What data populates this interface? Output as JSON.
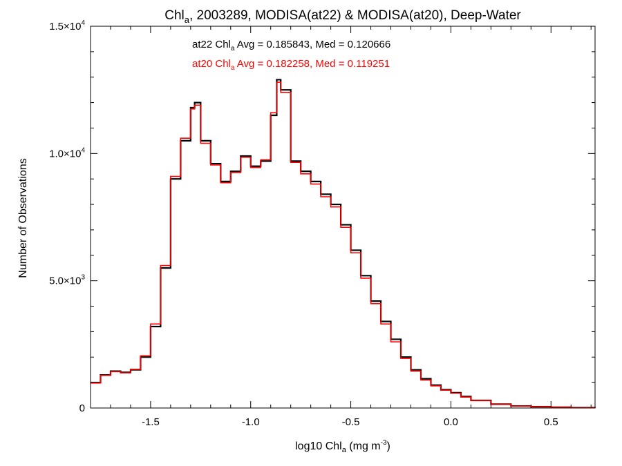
{
  "chart_data": {
    "type": "line",
    "title": {
      "base": "Chl",
      "sub": "a",
      "rest": ", 2003289, MODISA(at22) & MODISA(at20), Deep-Water"
    },
    "xlabel": {
      "base": "log10 Chl",
      "sub": "a",
      "mid": " (mg m",
      "sup": "-3",
      "end": ")"
    },
    "ylabel": "Number of Observations",
    "xlim": [
      -1.8,
      0.72
    ],
    "ylim": [
      0,
      15000
    ],
    "x_ticks": [
      {
        "value": -1.5,
        "label": "-1.5"
      },
      {
        "value": -1.0,
        "label": "-1.0"
      },
      {
        "value": -0.5,
        "label": "-0.5"
      },
      {
        "value": 0.0,
        "label": "0.0"
      },
      {
        "value": 0.5,
        "label": "0.5"
      }
    ],
    "y_ticks": [
      {
        "value": 0,
        "mant": "0",
        "exp": ""
      },
      {
        "value": 5000,
        "mant": "5.0×10",
        "exp": "3"
      },
      {
        "value": 10000,
        "mant": "1.0×10",
        "exp": "4"
      },
      {
        "value": 15000,
        "mant": "1.5×10",
        "exp": "4"
      }
    ],
    "annotations": [
      {
        "pre": "at22 Chl",
        "sub": "a",
        "post": " Avg = 0.185843, Med = 0.120666",
        "color": "#000000"
      },
      {
        "pre": "at20 Chl",
        "sub": "a",
        "post": " Avg = 0.182258, Med = 0.119251",
        "color": "#ff0000"
      }
    ],
    "series": [
      {
        "color": "#000000",
        "x": [
          -1.8,
          -1.75,
          -1.7,
          -1.65,
          -1.6,
          -1.55,
          -1.5,
          -1.45,
          -1.4,
          -1.35,
          -1.3,
          -1.28,
          -1.25,
          -1.2,
          -1.15,
          -1.1,
          -1.05,
          -1.0,
          -0.95,
          -0.9,
          -0.87,
          -0.85,
          -0.8,
          -0.75,
          -0.7,
          -0.65,
          -0.6,
          -0.55,
          -0.5,
          -0.45,
          -0.4,
          -0.35,
          -0.3,
          -0.25,
          -0.2,
          -0.15,
          -0.1,
          -0.05,
          0.0,
          0.05,
          0.1,
          0.2,
          0.3,
          0.4,
          0.5,
          0.6,
          0.72
        ],
        "y": [
          1000,
          1300,
          1450,
          1400,
          1500,
          2000,
          3200,
          5500,
          9000,
          10500,
          11800,
          12000,
          10500,
          9600,
          8900,
          9300,
          9900,
          9500,
          9700,
          11500,
          12900,
          12500,
          9700,
          9300,
          8900,
          8400,
          8000,
          7200,
          6200,
          5200,
          4200,
          3400,
          2700,
          2000,
          1500,
          1150,
          900,
          720,
          600,
          450,
          300,
          150,
          80,
          50,
          30,
          15,
          10
        ]
      },
      {
        "color": "#ff0000",
        "x": [
          -1.8,
          -1.75,
          -1.7,
          -1.65,
          -1.6,
          -1.55,
          -1.5,
          -1.45,
          -1.4,
          -1.35,
          -1.3,
          -1.28,
          -1.25,
          -1.2,
          -1.15,
          -1.1,
          -1.05,
          -1.0,
          -0.95,
          -0.9,
          -0.87,
          -0.85,
          -0.8,
          -0.75,
          -0.7,
          -0.65,
          -0.6,
          -0.55,
          -0.5,
          -0.45,
          -0.4,
          -0.35,
          -0.3,
          -0.25,
          -0.2,
          -0.15,
          -0.1,
          -0.05,
          0.0,
          0.05,
          0.1,
          0.2,
          0.3,
          0.4,
          0.5,
          0.6,
          0.72
        ],
        "y": [
          980,
          1280,
          1430,
          1380,
          1520,
          2050,
          3300,
          5600,
          9100,
          10600,
          11750,
          11900,
          10400,
          9550,
          8850,
          9250,
          9850,
          9450,
          9750,
          11600,
          12800,
          12400,
          9650,
          9200,
          8800,
          8300,
          7900,
          7100,
          6100,
          5100,
          4100,
          3300,
          2600,
          1950,
          1450,
          1100,
          870,
          700,
          580,
          430,
          290,
          140,
          75,
          45,
          28,
          14,
          9
        ]
      }
    ]
  }
}
